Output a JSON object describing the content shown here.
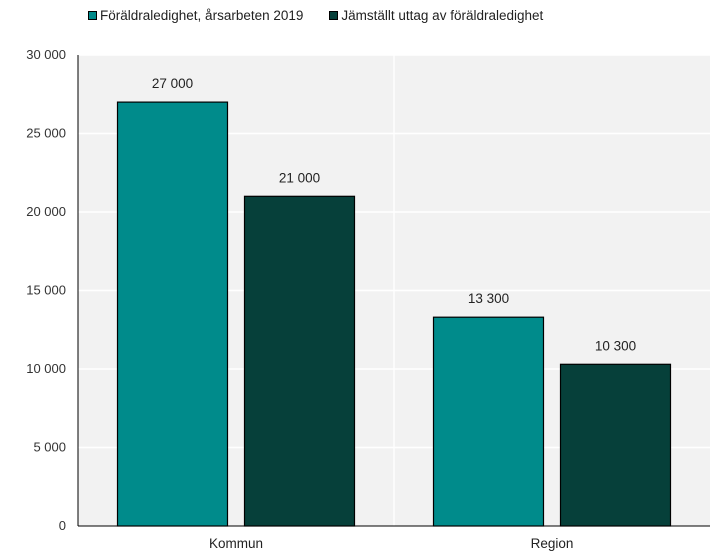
{
  "chart_data": {
    "type": "bar",
    "categories": [
      "Kommun",
      "Region"
    ],
    "series": [
      {
        "name": "Föräldraledighet, årsarbeten 2019",
        "values": [
          27000,
          13300
        ],
        "color": "#008B8B"
      },
      {
        "name": "Jämställt uttag av föräldraledighet",
        "values": [
          21000,
          10300
        ],
        "color": "#06403A"
      }
    ],
    "data_labels": [
      [
        "27 000",
        "13 300"
      ],
      [
        "21 000",
        "10 300"
      ]
    ],
    "y_ticks": [
      0,
      5000,
      10000,
      15000,
      20000,
      25000,
      30000
    ],
    "y_tick_labels": [
      "0",
      "5 000",
      "10 000",
      "15 000",
      "20 000",
      "25 000",
      "30 000"
    ],
    "ylim": [
      0,
      30000
    ],
    "grid": true,
    "legend_position": "top",
    "background": "#F2F2F2",
    "title": "",
    "xlabel": "",
    "ylabel": ""
  }
}
